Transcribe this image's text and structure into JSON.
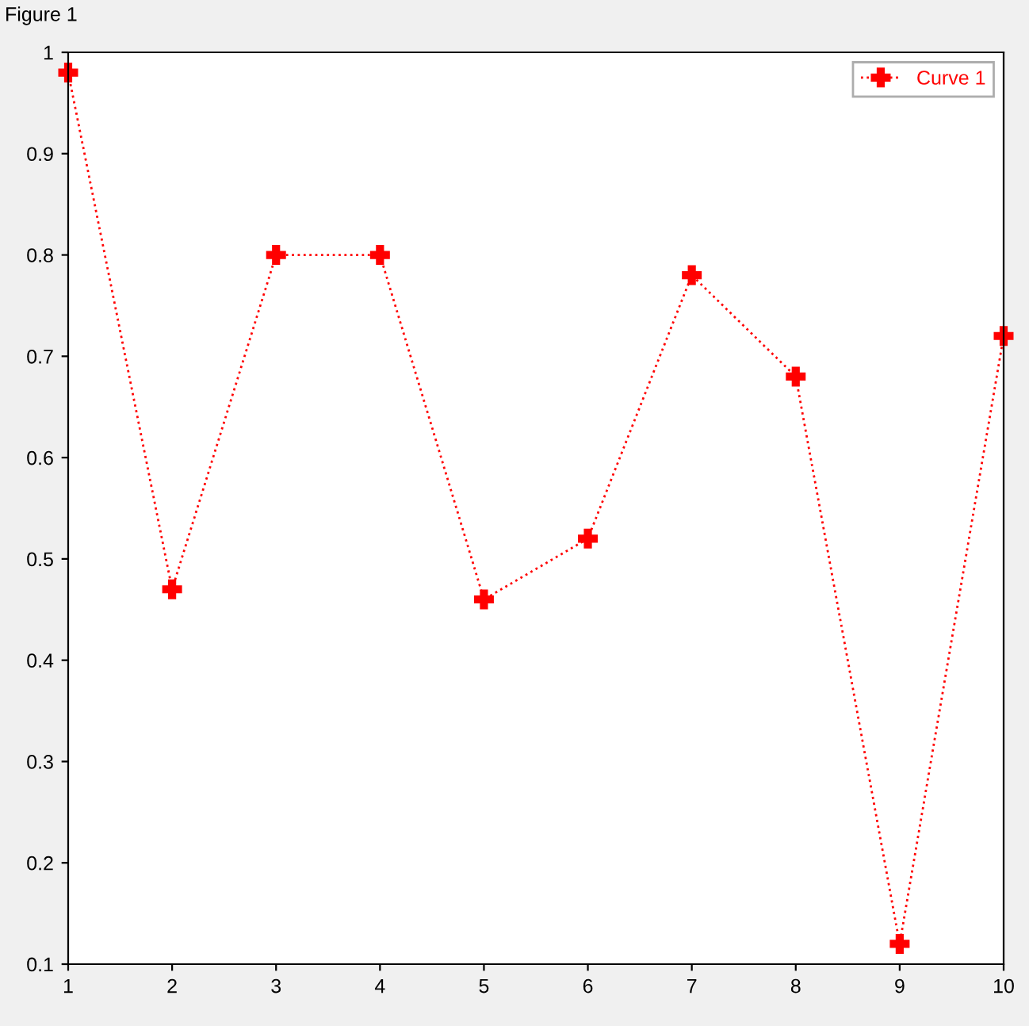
{
  "chart_data": {
    "type": "line",
    "title": "Figure 1",
    "x": [
      1,
      2,
      3,
      4,
      5,
      6,
      7,
      8,
      9,
      10
    ],
    "series": [
      {
        "name": "Curve 1",
        "color": "#ff0000",
        "values": [
          0.98,
          0.47,
          0.8,
          0.8,
          0.46,
          0.52,
          0.78,
          0.68,
          0.12,
          0.72
        ]
      }
    ],
    "xlim": [
      1,
      10
    ],
    "ylim": [
      0.1,
      1
    ],
    "xticks": [
      1,
      2,
      3,
      4,
      5,
      6,
      7,
      8,
      9,
      10
    ],
    "yticks": [
      0.1,
      0.2,
      0.3,
      0.4,
      0.5,
      0.6,
      0.7,
      0.8,
      0.9,
      1
    ],
    "grid": false,
    "legend": "top right",
    "marker": "cross",
    "line_style": "dotted"
  }
}
